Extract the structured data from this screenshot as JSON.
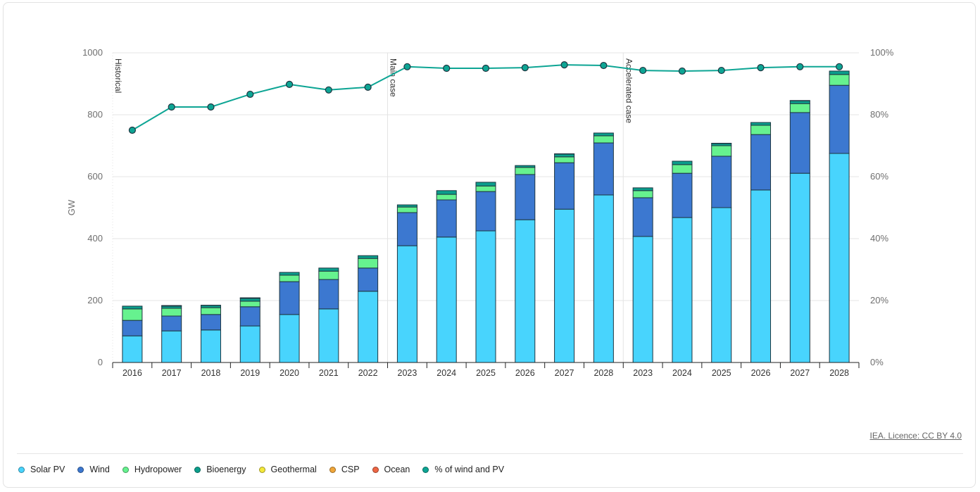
{
  "source_label": "IEA. Licence: CC BY 4.0",
  "chart_data": {
    "type": "bar",
    "stacked": true,
    "title": "",
    "xlabel": "",
    "ylabel": "GW",
    "ylim": [
      0,
      1000
    ],
    "y_ticks": [
      "0",
      "200",
      "400",
      "600",
      "800",
      "1000"
    ],
    "y2lim": [
      0,
      100
    ],
    "y2_ticks": [
      "0%",
      "20%",
      "40%",
      "60%",
      "80%",
      "100%"
    ],
    "grid": true,
    "legend_position": "bottom-left",
    "categories": [
      "2016",
      "2017",
      "2018",
      "2019",
      "2020",
      "2021",
      "2022",
      "2023",
      "2024",
      "2025",
      "2026",
      "2027",
      "2028",
      "2023",
      "2024",
      "2025",
      "2026",
      "2027",
      "2028"
    ],
    "annotations": [
      {
        "label": "Historical",
        "at_index": 0
      },
      {
        "label": "Main case",
        "at_index": 7
      },
      {
        "label": "Accelerated case",
        "at_index": 13
      }
    ],
    "series": [
      {
        "name": "Solar PV",
        "color": "#48d4fd",
        "values": [
          86,
          102,
          105,
          118,
          155,
          173,
          230,
          377,
          405,
          425,
          461,
          495,
          541,
          407,
          468,
          500,
          557,
          611,
          675
        ]
      },
      {
        "name": "Wind",
        "color": "#3c78d0",
        "values": [
          50,
          48,
          50,
          62,
          106,
          95,
          75,
          107,
          120,
          127,
          146,
          150,
          168,
          125,
          143,
          166,
          179,
          196,
          220
        ]
      },
      {
        "name": "Hydropower",
        "color": "#66f28f",
        "values": [
          37,
          25,
          22,
          18,
          21,
          27,
          31,
          18,
          18,
          18,
          23,
          19,
          23,
          23,
          28,
          34,
          30,
          29,
          35
        ]
      },
      {
        "name": "Bioenergy",
        "color": "#0b9e8c",
        "values": [
          9,
          7,
          7,
          9,
          9,
          10,
          9,
          7,
          12,
          12,
          6,
          9,
          9,
          9,
          11,
          7,
          9,
          9,
          11
        ]
      },
      {
        "name": "Geothermal",
        "color": "#f4e93a",
        "values": [
          0,
          1,
          1,
          1,
          0,
          0,
          0,
          0,
          0,
          0,
          0,
          0,
          0,
          0,
          0,
          0,
          0,
          0,
          0
        ]
      },
      {
        "name": "CSP",
        "color": "#f0a63a",
        "values": [
          0,
          1,
          0,
          1,
          0,
          0,
          0,
          0,
          0,
          0,
          0,
          1,
          0,
          0,
          0,
          1,
          0,
          1,
          0
        ]
      },
      {
        "name": "Ocean",
        "color": "#ee6644",
        "values": [
          0,
          0,
          0,
          0,
          0,
          0,
          0,
          0,
          0,
          0,
          0,
          0,
          0,
          0,
          0,
          0,
          0,
          0,
          0
        ]
      }
    ],
    "line_series": {
      "name": "% of wind and PV",
      "color": "#0da594",
      "axis": "right",
      "values": [
        75.0,
        82.5,
        82.5,
        86.6,
        89.8,
        88.0,
        88.9,
        95.5,
        95.0,
        95.0,
        95.2,
        96.1,
        95.9,
        94.3,
        94.1,
        94.3,
        95.2,
        95.5,
        95.5
      ]
    }
  },
  "legend": [
    {
      "label": "Solar PV",
      "color": "#48d4fd"
    },
    {
      "label": "Wind",
      "color": "#3c78d0"
    },
    {
      "label": "Hydropower",
      "color": "#66f28f"
    },
    {
      "label": "Bioenergy",
      "color": "#0b9e8c"
    },
    {
      "label": "Geothermal",
      "color": "#f4e93a"
    },
    {
      "label": "CSP",
      "color": "#f0a63a"
    },
    {
      "label": "Ocean",
      "color": "#ee6644"
    },
    {
      "label": "% of wind and PV",
      "color": "#0da594"
    }
  ]
}
